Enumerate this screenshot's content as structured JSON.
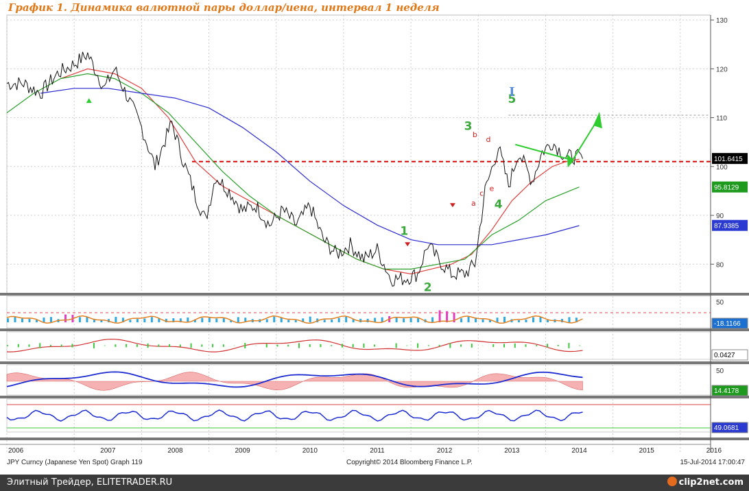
{
  "title": "График 1. Динамика валютной пары доллар/иена, интервал 1 неделя",
  "source_label": "JPY Curncy (Japanese Yen Spot) Graph 119",
  "copyright": "Copyright© 2014 Bloomberg Finance L.P.",
  "date_stamp": "15-Jul-2014 17:00:47",
  "footer_text": "Элитный Трейдер, ELITETRADER.RU",
  "logo_text": "clip2net.com",
  "chart_data": {
    "type": "line",
    "x_labels": [
      "2006",
      "2007",
      "2008",
      "2009",
      "2010",
      "2011",
      "2012",
      "2013",
      "2014",
      "2015",
      "2016"
    ],
    "y_ticks": [
      "130",
      "120",
      "110",
      "100",
      "90",
      "80"
    ],
    "ylim": [
      74,
      131
    ],
    "price_series": {
      "name": "",
      "x": [
        2006.0,
        2006.25,
        2006.5,
        2006.75,
        2007.0,
        2007.2,
        2007.45,
        2007.6,
        2007.8,
        2008.0,
        2008.2,
        2008.45,
        2008.6,
        2008.8,
        2008.95,
        2009.1,
        2009.3,
        2009.5,
        2009.7,
        2009.9,
        2010.1,
        2010.3,
        2010.5,
        2010.7,
        2010.9,
        2011.1,
        2011.3,
        2011.5,
        2011.7,
        2011.9,
        2012.1,
        2012.25,
        2012.4,
        2012.6,
        2012.8,
        2012.95,
        2013.1,
        2013.3,
        2013.45,
        2013.6,
        2013.8,
        2013.95,
        2014.1,
        2014.3,
        2014.45,
        2014.55
      ],
      "values": [
        117,
        117,
        115,
        119,
        121,
        123,
        116,
        120,
        114,
        108,
        100,
        109,
        102,
        94,
        89,
        98,
        95,
        91,
        92,
        88,
        91,
        88,
        92,
        85,
        82,
        84,
        81,
        83,
        77,
        77,
        78,
        84,
        81,
        78,
        78,
        80,
        95,
        104,
        96,
        103,
        97,
        103,
        105,
        102,
        102,
        101.6
      ]
    },
    "moving_averages": [
      {
        "name": "",
        "color": "#e04040",
        "x": [
          2006.8,
          2007.2,
          2007.6,
          2008.0,
          2008.4,
          2008.8,
          2009.2,
          2009.6,
          2010.0,
          2010.4,
          2010.8,
          2011.2,
          2011.6,
          2012.0,
          2012.3,
          2012.6,
          2012.9,
          2013.2,
          2013.5,
          2013.8,
          2014.1,
          2014.3,
          2014.5
        ],
        "values": [
          118,
          120,
          119,
          116,
          110,
          101,
          96,
          93,
          90,
          87,
          84,
          81,
          79,
          78,
          79,
          80,
          82,
          87,
          93,
          97,
          100,
          101,
          101.5
        ]
      },
      {
        "name": "",
        "color": "#2aa02a",
        "x": [
          2006.0,
          2006.4,
          2006.8,
          2007.2,
          2007.6,
          2008.0,
          2008.4,
          2008.8,
          2009.2,
          2009.6,
          2010.0,
          2010.4,
          2010.8,
          2011.2,
          2011.6,
          2012.0,
          2012.4,
          2012.8,
          2013.2,
          2013.6,
          2014.0,
          2014.5
        ],
        "values": [
          111,
          115,
          118,
          119,
          118,
          115,
          111,
          105,
          99,
          94,
          90,
          87,
          84,
          81,
          79,
          79,
          80,
          81,
          86,
          89,
          93,
          95.8
        ]
      },
      {
        "name": "",
        "color": "#2a2ad0",
        "x": [
          2006.5,
          2007.0,
          2007.5,
          2008.0,
          2008.5,
          2009.0,
          2009.5,
          2010.0,
          2010.5,
          2011.0,
          2011.5,
          2012.0,
          2012.4,
          2012.8,
          2013.2,
          2013.6,
          2014.0,
          2014.5
        ],
        "values": [
          115,
          116,
          116,
          115,
          114,
          112,
          108,
          103,
          97,
          92,
          88,
          85,
          84,
          84,
          84,
          85,
          86,
          87.9
        ]
      }
    ],
    "support_level": 101,
    "resistance_level": 110.5,
    "price_badges": [
      {
        "value": "101.6415",
        "y": 101.64,
        "bg": "#000000",
        "fg": "#ffffff"
      },
      {
        "value": "95.8129",
        "y": 95.81,
        "bg": "#1e9a1e",
        "fg": "#ffffff"
      },
      {
        "value": "87.9385",
        "y": 87.94,
        "bg": "#2a3ad0",
        "fg": "#ffffff"
      }
    ],
    "wave_labels": [
      {
        "text": "1",
        "x": 2011.9,
        "y": 86
      },
      {
        "text": "2",
        "x": 2012.25,
        "y": 74.5
      },
      {
        "text": "3",
        "x": 2012.85,
        "y": 107.5
      },
      {
        "text": "4",
        "x": 2013.3,
        "y": 91.5
      },
      {
        "text": "5",
        "x": 2013.5,
        "y": 113
      }
    ],
    "sub_labels": [
      {
        "text": "b",
        "x": 2012.95,
        "y": 106
      },
      {
        "text": "d",
        "x": 2013.15,
        "y": 105
      },
      {
        "text": "a",
        "x": 2012.93,
        "y": 92
      },
      {
        "text": "c",
        "x": 2013.05,
        "y": 94
      },
      {
        "text": "e",
        "x": 2013.2,
        "y": 95
      }
    ],
    "roman_label": {
      "text": "I",
      "x": 2013.5,
      "y": 113
    },
    "indicator_panels": [
      {
        "name": "",
        "ticks": [
          "50"
        ],
        "badge": "-18.1166",
        "badge_bg": "#1a6fd0"
      },
      {
        "name": "",
        "ticks": [],
        "badge": "0.0427",
        "badge_bg": "#ffffff"
      },
      {
        "name": "",
        "ticks": [
          "50"
        ],
        "badge": "14.4178",
        "badge_bg": "#1e9a1e"
      },
      {
        "name": "",
        "ticks": [],
        "badge": "49.0681",
        "badge_bg": "#2a3ad0"
      }
    ],
    "grid": true
  }
}
